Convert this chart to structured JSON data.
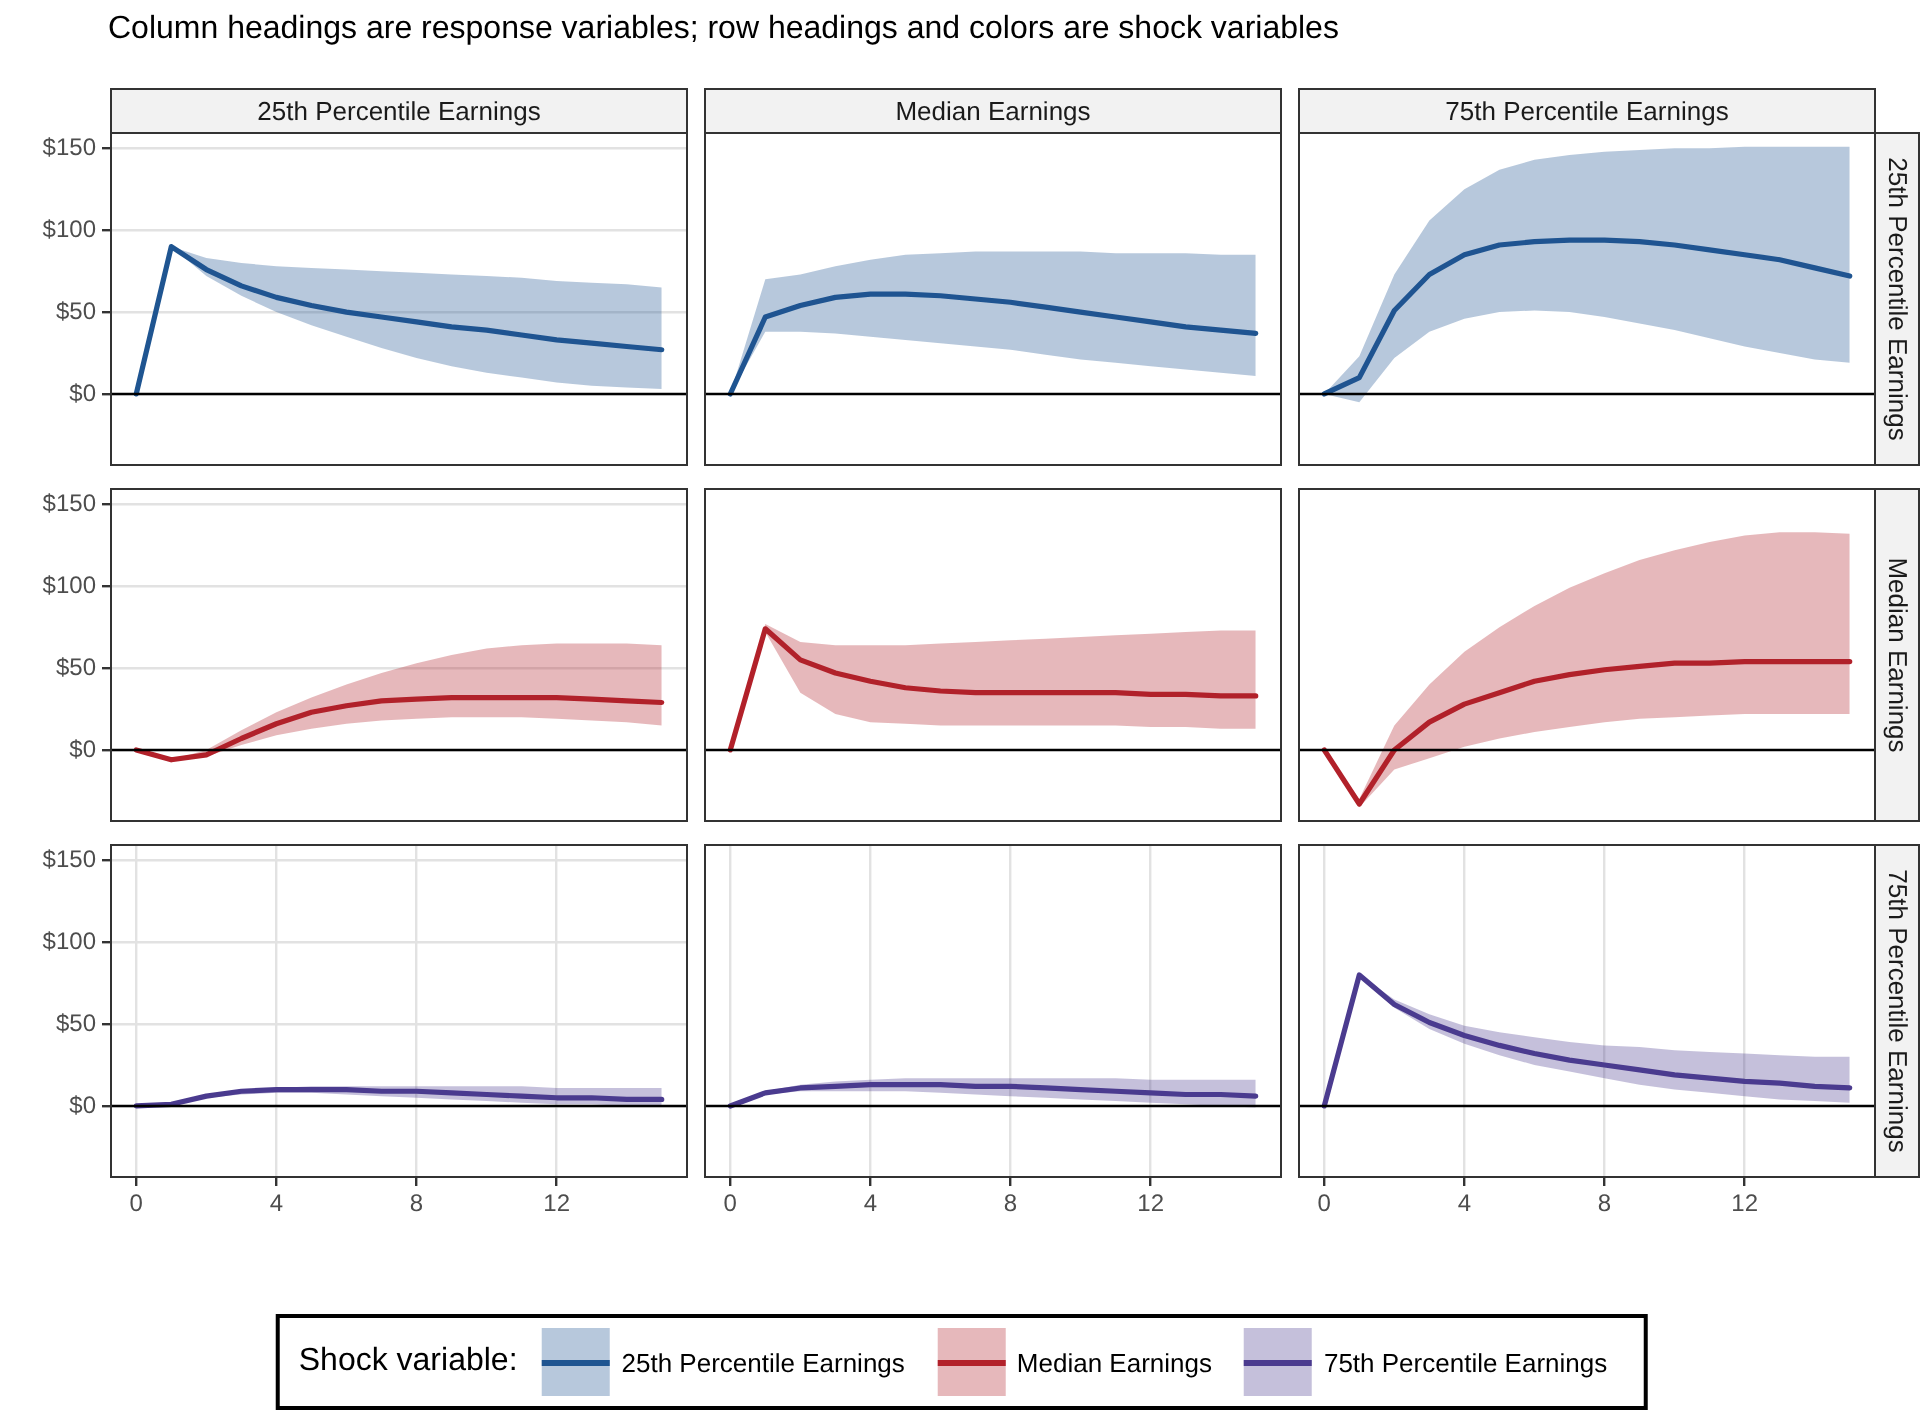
{
  "chart_data": [
    {
      "type": "line",
      "annotations": [
        "Column headings are response variables; row headings and colors are shock variables"
      ],
      "legend": "bottom",
      "legend_title": "Shock variable:",
      "title": "25th Percentile Earnings",
      "tick_labels": "y",
      "grid": true,
      "marker": "none",
      "x": [
        0,
        1,
        2,
        3,
        4,
        5,
        6,
        7,
        8,
        9,
        10,
        11,
        12,
        13,
        14,
        15
      ],
      "xlim": [
        -0.75,
        15.75
      ],
      "xticks": [
        0,
        4,
        8,
        12
      ],
      "ylim": [
        -44,
        160
      ],
      "yticks": [
        {
          "value": 0,
          "label": "$0"
        },
        {
          "value": 50,
          "label": "$50"
        },
        {
          "value": 100,
          "label": "$100"
        },
        {
          "value": 150,
          "label": "$150"
        }
      ],
      "ref_lines": [
        {
          "axis": "y",
          "value": 0,
          "color": "#000000"
        }
      ],
      "series": [
        {
          "name": "25th Percentile Earnings",
          "color": "#1f5591",
          "values": [
            0,
            90,
            76,
            66,
            59,
            54,
            50,
            47,
            44,
            41,
            39,
            36,
            33,
            31,
            29,
            27
          ],
          "lower": [
            0,
            90,
            72,
            60,
            50,
            42,
            35,
            28,
            22,
            17,
            13,
            10,
            7,
            5,
            4,
            3
          ],
          "upper": [
            0,
            90,
            83,
            80,
            78,
            77,
            76,
            75,
            74,
            73,
            72,
            71,
            69,
            68,
            67,
            65
          ]
        }
      ]
    },
    {
      "type": "line",
      "title": "Median Earnings",
      "tick_labels": false,
      "grid": true,
      "marker": "none",
      "x": [
        0,
        1,
        2,
        3,
        4,
        5,
        6,
        7,
        8,
        9,
        10,
        11,
        12,
        13,
        14,
        15
      ],
      "xlim": [
        -0.75,
        15.75
      ],
      "xticks": [
        0,
        4,
        8,
        12
      ],
      "ylim": [
        -44,
        160
      ],
      "ref_lines": [
        {
          "axis": "y",
          "value": 0,
          "color": "#000000"
        }
      ],
      "series": [
        {
          "color": "#1f5591",
          "values": [
            0,
            47,
            54,
            59,
            61,
            61,
            60,
            58,
            56,
            53,
            50,
            47,
            44,
            41,
            39,
            37
          ],
          "lower": [
            0,
            38,
            38,
            37,
            35,
            33,
            31,
            29,
            27,
            24,
            21,
            19,
            17,
            15,
            13,
            11
          ],
          "upper": [
            0,
            70,
            73,
            78,
            82,
            85,
            86,
            87,
            87,
            87,
            87,
            86,
            86,
            86,
            85,
            85
          ]
        }
      ]
    },
    {
      "type": "line",
      "title": "75th Percentile Earnings",
      "y2label": "25th Percentile Earnings",
      "tick_labels": false,
      "grid": true,
      "marker": "none",
      "x": [
        0,
        1,
        2,
        3,
        4,
        5,
        6,
        7,
        8,
        9,
        10,
        11,
        12,
        13,
        14,
        15
      ],
      "xlim": [
        -0.75,
        15.75
      ],
      "xticks": [
        0,
        4,
        8,
        12
      ],
      "ylim": [
        -44,
        160
      ],
      "ref_lines": [
        {
          "axis": "y",
          "value": 0,
          "color": "#000000"
        }
      ],
      "series": [
        {
          "color": "#1f5591",
          "values": [
            0,
            10,
            51,
            73,
            85,
            91,
            93,
            94,
            94,
            93,
            91,
            88,
            85,
            82,
            77,
            72
          ],
          "lower": [
            0,
            -5,
            22,
            38,
            46,
            50,
            51,
            50,
            47,
            43,
            39,
            34,
            29,
            25,
            21,
            19
          ],
          "upper": [
            0,
            23,
            73,
            106,
            125,
            137,
            143,
            146,
            148,
            149,
            150,
            150,
            151,
            151,
            151,
            151
          ]
        }
      ]
    },
    {
      "type": "line",
      "tick_labels": "y",
      "grid": true,
      "marker": "none",
      "x": [
        0,
        1,
        2,
        3,
        4,
        5,
        6,
        7,
        8,
        9,
        10,
        11,
        12,
        13,
        14,
        15
      ],
      "xlim": [
        -0.75,
        15.75
      ],
      "xticks": [
        0,
        4,
        8,
        12
      ],
      "ylim": [
        -44,
        160
      ],
      "yticks": [
        {
          "value": 0,
          "label": "$0"
        },
        {
          "value": 50,
          "label": "$50"
        },
        {
          "value": 100,
          "label": "$100"
        },
        {
          "value": 150,
          "label": "$150"
        }
      ],
      "ref_lines": [
        {
          "axis": "y",
          "value": 0,
          "color": "#000000"
        }
      ],
      "series": [
        {
          "name": "Median Earnings",
          "color": "#b2212a",
          "values": [
            0,
            -6,
            -3,
            7,
            16,
            23,
            27,
            30,
            31,
            32,
            32,
            32,
            32,
            31,
            30,
            29
          ],
          "lower": [
            0,
            -6,
            -4,
            3,
            9,
            13,
            16,
            18,
            19,
            20,
            20,
            20,
            19,
            18,
            17,
            15
          ],
          "upper": [
            0,
            -6,
            0,
            12,
            23,
            32,
            40,
            47,
            53,
            58,
            62,
            64,
            65,
            65,
            65,
            64
          ]
        }
      ]
    },
    {
      "type": "line",
      "tick_labels": false,
      "grid": true,
      "marker": "none",
      "x": [
        0,
        1,
        2,
        3,
        4,
        5,
        6,
        7,
        8,
        9,
        10,
        11,
        12,
        13,
        14,
        15
      ],
      "xlim": [
        -0.75,
        15.75
      ],
      "xticks": [
        0,
        4,
        8,
        12
      ],
      "ylim": [
        -44,
        160
      ],
      "ref_lines": [
        {
          "axis": "y",
          "value": 0,
          "color": "#000000"
        }
      ],
      "series": [
        {
          "color": "#b2212a",
          "values": [
            0,
            74,
            55,
            47,
            42,
            38,
            36,
            35,
            35,
            35,
            35,
            35,
            34,
            34,
            33,
            33
          ],
          "lower": [
            0,
            72,
            35,
            22,
            17,
            16,
            15,
            15,
            15,
            15,
            15,
            15,
            14,
            14,
            13,
            13
          ],
          "upper": [
            0,
            77,
            66,
            64,
            64,
            64,
            65,
            66,
            67,
            68,
            69,
            70,
            71,
            72,
            73,
            73
          ]
        }
      ]
    },
    {
      "type": "line",
      "y2label": "Median Earnings",
      "tick_labels": false,
      "grid": true,
      "marker": "none",
      "x": [
        0,
        1,
        2,
        3,
        4,
        5,
        6,
        7,
        8,
        9,
        10,
        11,
        12,
        13,
        14,
        15
      ],
      "xlim": [
        -0.75,
        15.75
      ],
      "xticks": [
        0,
        4,
        8,
        12
      ],
      "ylim": [
        -44,
        160
      ],
      "ref_lines": [
        {
          "axis": "y",
          "value": 0,
          "color": "#000000"
        }
      ],
      "series": [
        {
          "color": "#b2212a",
          "values": [
            0,
            -33,
            0,
            17,
            28,
            35,
            42,
            46,
            49,
            51,
            53,
            53,
            54,
            54,
            54,
            54
          ],
          "lower": [
            0,
            -35,
            -12,
            -5,
            2,
            7,
            11,
            14,
            17,
            19,
            20,
            21,
            22,
            22,
            22,
            22
          ],
          "upper": [
            0,
            -30,
            15,
            40,
            60,
            75,
            88,
            99,
            108,
            116,
            122,
            127,
            131,
            133,
            133,
            132
          ]
        }
      ]
    },
    {
      "type": "line",
      "grid": true,
      "marker": "none",
      "x": [
        0,
        1,
        2,
        3,
        4,
        5,
        6,
        7,
        8,
        9,
        10,
        11,
        12,
        13,
        14,
        15
      ],
      "xlim": [
        -0.75,
        15.75
      ],
      "xticks": [
        0,
        4,
        8,
        12
      ],
      "ylim": [
        -44,
        160
      ],
      "yticks": [
        {
          "value": 0,
          "label": "$0"
        },
        {
          "value": 50,
          "label": "$50"
        },
        {
          "value": 100,
          "label": "$100"
        },
        {
          "value": 150,
          "label": "$150"
        }
      ],
      "ref_lines": [
        {
          "axis": "y",
          "value": 0,
          "color": "#000000"
        }
      ],
      "series": [
        {
          "name": "75th Percentile Earnings",
          "color": "#4b3b8f",
          "values": [
            0,
            1,
            6,
            9,
            10,
            10,
            10,
            9,
            9,
            8,
            7,
            6,
            5,
            5,
            4,
            4
          ],
          "lower": [
            0,
            1,
            5,
            7,
            8,
            8,
            7,
            6,
            5,
            4,
            3,
            2,
            1,
            1,
            0,
            0
          ],
          "upper": [
            0,
            2,
            7,
            10,
            11,
            12,
            12,
            12,
            12,
            12,
            12,
            12,
            11,
            11,
            11,
            11
          ]
        }
      ]
    },
    {
      "type": "line",
      "tick_labels": "x",
      "grid": true,
      "marker": "none",
      "x": [
        0,
        1,
        2,
        3,
        4,
        5,
        6,
        7,
        8,
        9,
        10,
        11,
        12,
        13,
        14,
        15
      ],
      "xlim": [
        -0.75,
        15.75
      ],
      "xticks": [
        0,
        4,
        8,
        12
      ],
      "ylim": [
        -44,
        160
      ],
      "ref_lines": [
        {
          "axis": "y",
          "value": 0,
          "color": "#000000"
        }
      ],
      "series": [
        {
          "color": "#4b3b8f",
          "values": [
            0,
            8,
            11,
            12,
            13,
            13,
            13,
            12,
            12,
            11,
            10,
            9,
            8,
            7,
            7,
            6
          ],
          "lower": [
            0,
            7,
            9,
            9,
            9,
            9,
            8,
            7,
            6,
            5,
            4,
            3,
            2,
            1,
            0,
            -1
          ],
          "upper": [
            0,
            9,
            13,
            15,
            16,
            17,
            17,
            17,
            17,
            17,
            17,
            17,
            16,
            16,
            16,
            16
          ]
        }
      ]
    },
    {
      "type": "line",
      "y2label": "75th Percentile Earnings",
      "tick_labels": "x",
      "grid": true,
      "marker": "none",
      "x": [
        0,
        1,
        2,
        3,
        4,
        5,
        6,
        7,
        8,
        9,
        10,
        11,
        12,
        13,
        14,
        15
      ],
      "xlim": [
        -0.75,
        15.75
      ],
      "xticks": [
        0,
        4,
        8,
        12
      ],
      "ylim": [
        -44,
        160
      ],
      "ref_lines": [
        {
          "axis": "y",
          "value": 0,
          "color": "#000000"
        }
      ],
      "series": [
        {
          "color": "#4b3b8f",
          "values": [
            0,
            80,
            62,
            51,
            43,
            37,
            32,
            28,
            25,
            22,
            19,
            17,
            15,
            14,
            12,
            11
          ],
          "lower": [
            0,
            80,
            60,
            47,
            38,
            31,
            25,
            21,
            17,
            13,
            10,
            8,
            6,
            4,
            3,
            2
          ],
          "upper": [
            0,
            80,
            65,
            56,
            49,
            45,
            42,
            39,
            37,
            36,
            34,
            33,
            32,
            31,
            30,
            30
          ]
        }
      ]
    }
  ]
}
